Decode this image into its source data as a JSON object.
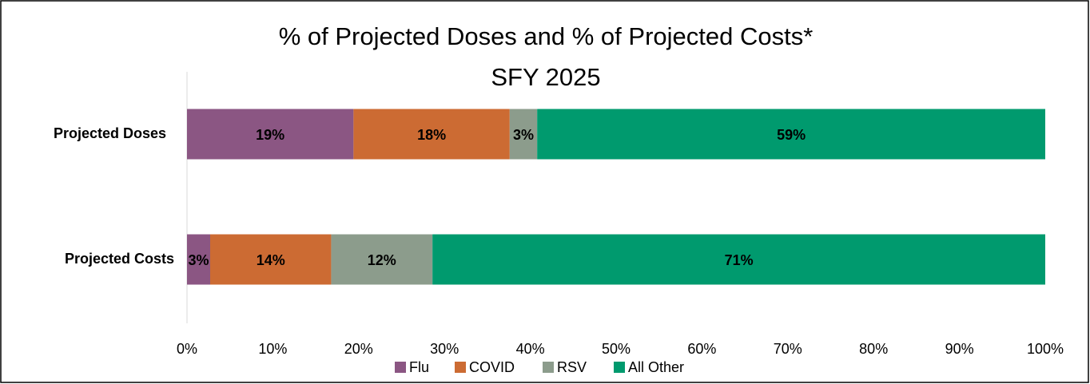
{
  "chart_data": {
    "type": "stacked_barh",
    "title": "% of Projected Doses and % of Projected Costs*",
    "subtitle": "SFY 2025",
    "categories": [
      "Projected Doses",
      "Projected Costs"
    ],
    "series": [
      {
        "name": "Flu",
        "color": "#8b5683",
        "values": [
          19.4,
          2.7
        ],
        "value_labels": [
          "19%",
          "3%"
        ]
      },
      {
        "name": "COVID",
        "color": "#cc6b33",
        "values": [
          18.2,
          14.1
        ],
        "value_labels": [
          "18%",
          "14%"
        ]
      },
      {
        "name": "RSV",
        "color": "#8c9c8c",
        "values": [
          3.2,
          11.8
        ],
        "value_labels": [
          "3%",
          "12%"
        ]
      },
      {
        "name": "All Other",
        "color": "#009a6e",
        "values": [
          59.2,
          71.4
        ],
        "value_labels": [
          "59%",
          "71%"
        ]
      }
    ],
    "xlim": [
      0,
      100
    ],
    "xticks": [
      {
        "value": 0,
        "label": "0%"
      },
      {
        "value": 10,
        "label": "10%"
      },
      {
        "value": 20,
        "label": "20%"
      },
      {
        "value": 30,
        "label": "30%"
      },
      {
        "value": 40,
        "label": "40%"
      },
      {
        "value": 50,
        "label": "50%"
      },
      {
        "value": 60,
        "label": "60%"
      },
      {
        "value": 70,
        "label": "70%"
      },
      {
        "value": 80,
        "label": "80%"
      },
      {
        "value": 90,
        "label": "90%"
      },
      {
        "value": 100,
        "label": "100%"
      }
    ],
    "legend": "bottom"
  }
}
